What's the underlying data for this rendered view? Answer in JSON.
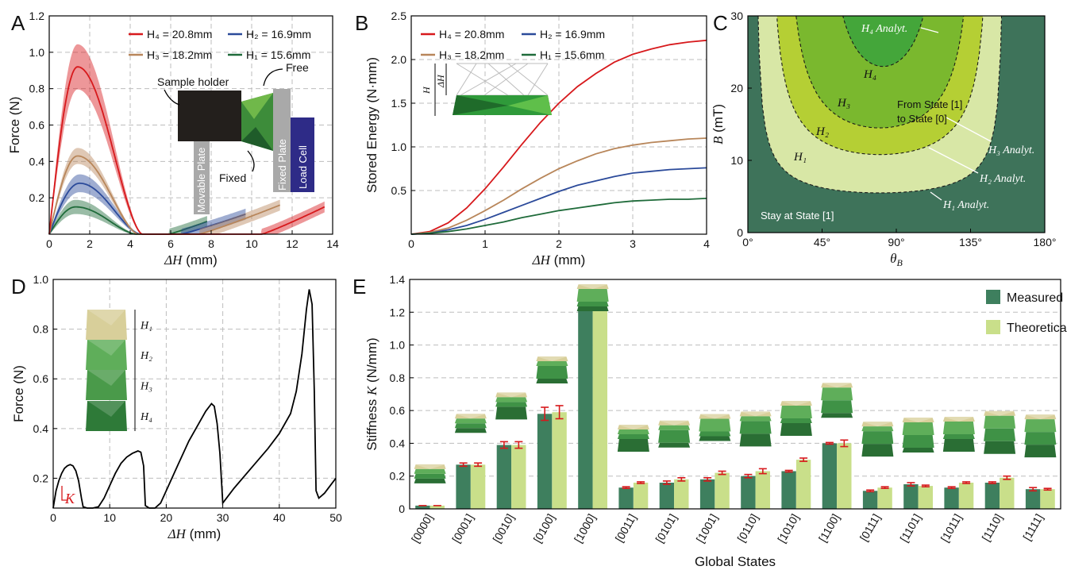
{
  "colors": {
    "H4": "#d7191c",
    "H3": "#b8865a",
    "H2": "#2b4a9a",
    "H1": "#1f6b3a",
    "measured": "#3e7f5e",
    "theoretical": "#c9df8a",
    "errorbar": "#d7191c",
    "regionH1": "#d8e7a6",
    "regionH2": "#b5cf34",
    "regionH3": "#7ab82e",
    "regionH4": "#44a63a",
    "regionStay": "#3e735a"
  },
  "panels": {
    "A": {
      "label": "A"
    },
    "B": {
      "label": "B"
    },
    "C": {
      "label": "C"
    },
    "D": {
      "label": "D"
    },
    "E": {
      "label": "E"
    }
  },
  "legendAB": {
    "H4": "H₄ = 20.8mm",
    "H2": "H₂ = 16.9mm",
    "H3": "H₃ = 18.2mm",
    "H1": "H₁ = 15.6mm"
  },
  "panelA_labels": {
    "sample_holder": "Sample holder",
    "free": "Free",
    "fixed": "Fixed",
    "movable_plate": "Movable Plate",
    "fixed_plate": "Fixed Plate",
    "load_cell": "Load Cell"
  },
  "panelB_labels": {
    "H": "H",
    "dH": "ΔH"
  },
  "panelC_labels": {
    "H4_analyt": "H₄ Analyt.",
    "H3_analyt": "H₃ Analyt.",
    "H2_analyt": "H₂ Analyt.",
    "H1_analyt": "H₁ Analyt.",
    "H4": "H₄",
    "H3": "H₃",
    "H2": "H₂",
    "H1": "H₁",
    "from_line1": "From State [1]",
    "from_line2": "to State [0]",
    "stay": "Stay at State  [1]"
  },
  "panelD_labels": {
    "K": "K",
    "H1": "H₁",
    "H2": "H₂",
    "H3": "H₃",
    "H4": "H₄"
  },
  "chart_data": [
    {
      "panel": "A",
      "type": "line",
      "xlabel": "ΔH (mm)",
      "ylabel": "Force (N)",
      "xlim": [
        0,
        14
      ],
      "ylim": [
        0,
        1.2
      ],
      "xticks": [
        0,
        2,
        4,
        6,
        8,
        10,
        12,
        14
      ],
      "yticks": [
        0.2,
        0.4,
        0.6,
        0.8,
        1.0,
        1.2
      ],
      "ytick_labels": [
        "0.2",
        "0.4",
        "0.6",
        "0.8",
        "1.0",
        "1.2"
      ],
      "grid": true,
      "legend": "top",
      "series": [
        {
          "key": "H4",
          "name": "H₄ = 20.8mm",
          "peak_x": 1.4,
          "peak_y": 0.92,
          "band": 0.12,
          "zero1": 4.6,
          "zero2": 10.5,
          "end_x": 13.6,
          "end_y": 0.15
        },
        {
          "key": "H3",
          "name": "H₃ = 18.2mm",
          "peak_x": 1.4,
          "peak_y": 0.43,
          "band": 0.04,
          "zero1": 4.4,
          "zero2": 7.4,
          "end_x": 11.4,
          "end_y": 0.16
        },
        {
          "key": "H2",
          "name": "H₂ = 16.9mm",
          "peak_x": 1.5,
          "peak_y": 0.28,
          "band": 0.045,
          "zero1": 4.5,
          "zero2": 6.5,
          "end_x": 9.7,
          "end_y": 0.11
        },
        {
          "key": "H1",
          "name": "H₁ = 15.6mm",
          "peak_x": 1.3,
          "peak_y": 0.15,
          "band": 0.035,
          "zero1": 4.3,
          "zero2": 5.9,
          "end_x": 7.8,
          "end_y": 0.07
        }
      ]
    },
    {
      "panel": "B",
      "type": "line",
      "xlabel": "ΔH (mm)",
      "ylabel": "Stored Energy (N·mm)",
      "xlim": [
        0,
        4
      ],
      "ylim": [
        0,
        2.5
      ],
      "xticks": [
        0,
        1,
        2,
        3,
        4
      ],
      "yticks": [
        0.5,
        1.0,
        1.5,
        2.0,
        2.5
      ],
      "ytick_labels": [
        "0.5",
        "1.0",
        "1.5",
        "2.0",
        "2.5"
      ],
      "grid": true,
      "legend": "top",
      "series": [
        {
          "key": "H4",
          "name": "H₄ = 20.8mm",
          "x": [
            0,
            0.25,
            0.5,
            0.75,
            1.0,
            1.25,
            1.5,
            1.75,
            2.0,
            2.25,
            2.5,
            2.75,
            3.0,
            3.25,
            3.5,
            3.75,
            4.0
          ],
          "values": [
            0,
            0.03,
            0.13,
            0.3,
            0.52,
            0.77,
            1.03,
            1.28,
            1.5,
            1.69,
            1.84,
            1.97,
            2.06,
            2.12,
            2.17,
            2.2,
            2.22
          ]
        },
        {
          "key": "H3",
          "name": "H₃ = 18.2mm",
          "x": [
            0,
            0.25,
            0.5,
            0.75,
            1.0,
            1.25,
            1.5,
            1.75,
            2.0,
            2.25,
            2.5,
            2.75,
            3.0,
            3.25,
            3.5,
            3.75,
            4.0
          ],
          "values": [
            0,
            0.02,
            0.07,
            0.16,
            0.27,
            0.39,
            0.52,
            0.64,
            0.75,
            0.84,
            0.92,
            0.98,
            1.02,
            1.05,
            1.07,
            1.09,
            1.1
          ]
        },
        {
          "key": "H2",
          "name": "H₂ = 16.9mm",
          "x": [
            0,
            0.25,
            0.5,
            0.75,
            1.0,
            1.25,
            1.5,
            1.75,
            2.0,
            2.25,
            2.5,
            2.75,
            3.0,
            3.25,
            3.5,
            3.75,
            4.0
          ],
          "values": [
            0,
            0.01,
            0.05,
            0.1,
            0.17,
            0.25,
            0.33,
            0.41,
            0.49,
            0.56,
            0.61,
            0.66,
            0.7,
            0.72,
            0.74,
            0.75,
            0.76
          ]
        },
        {
          "key": "H1",
          "name": "H₁ = 15.6mm",
          "x": [
            0,
            0.25,
            0.5,
            0.75,
            1.0,
            1.25,
            1.5,
            1.75,
            2.0,
            2.25,
            2.5,
            2.75,
            3.0,
            3.25,
            3.5,
            3.75,
            4.0
          ],
          "values": [
            0,
            0.01,
            0.03,
            0.06,
            0.1,
            0.14,
            0.19,
            0.23,
            0.27,
            0.3,
            0.33,
            0.36,
            0.38,
            0.39,
            0.4,
            0.4,
            0.41
          ]
        }
      ]
    },
    {
      "panel": "C",
      "type": "area",
      "xlabel": "θ_B",
      "ylabel": "B (mT)",
      "xlim": [
        0,
        180
      ],
      "ylim": [
        0,
        30
      ],
      "xticks": [
        0,
        45,
        90,
        135,
        180
      ],
      "xtick_labels": [
        "0°",
        "45°",
        "90°",
        "135°",
        "180°"
      ],
      "yticks": [
        0,
        10,
        20,
        30
      ],
      "ytick_labels": [
        "0",
        "10",
        "20",
        "30"
      ],
      "series": [
        {
          "key": "H1",
          "name": "H₁ Analyt.",
          "center": 80,
          "min_B": 5.5,
          "half_width": 75
        },
        {
          "key": "H2",
          "name": "H₂ Analyt.",
          "center": 80,
          "min_B": 10.8,
          "half_width": 67
        },
        {
          "key": "H3",
          "name": "H₃ Analyt.",
          "center": 80,
          "min_B": 14.5,
          "half_width": 58
        },
        {
          "key": "H4",
          "name": "H₄ Analyt.",
          "center": 82,
          "min_B": 23.0,
          "half_width": 38
        }
      ]
    },
    {
      "panel": "D",
      "type": "line",
      "xlabel": "ΔH (mm)",
      "ylabel": "Force (N)",
      "xlim": [
        0,
        50
      ],
      "ylim": [
        0.08,
        1.0
      ],
      "xticks": [
        0,
        10,
        20,
        30,
        40,
        50
      ],
      "yticks": [
        0.2,
        0.4,
        0.6,
        0.8,
        1.0
      ],
      "ytick_labels": [
        "0.2",
        "0.4",
        "0.6",
        "0.8",
        "1.0"
      ],
      "grid": true,
      "series": [
        {
          "name": "",
          "x": [
            0,
            0.5,
            1.0,
            1.5,
            2.0,
            2.5,
            3.0,
            3.5,
            4.0,
            4.5,
            5.0,
            5.3,
            6.0,
            7.0,
            8.0,
            9.0,
            10.0,
            11.0,
            12.0,
            13.0,
            14.0,
            15.0,
            15.5,
            16.0,
            16.3,
            17.0,
            18.0,
            19.0,
            20.0,
            22.0,
            24.0,
            26.0,
            27.0,
            28.0,
            28.5,
            29.0,
            29.5,
            30.0,
            32.0,
            35.0,
            38.0,
            40.0,
            42.0,
            43.0,
            44.0,
            44.8,
            45.3,
            45.8,
            46.2,
            46.5,
            47.0,
            48.0,
            50.0
          ],
          "values": [
            0.08,
            0.15,
            0.19,
            0.22,
            0.24,
            0.25,
            0.255,
            0.25,
            0.23,
            0.19,
            0.12,
            0.085,
            0.08,
            0.08,
            0.085,
            0.12,
            0.17,
            0.22,
            0.26,
            0.285,
            0.3,
            0.31,
            0.305,
            0.25,
            0.09,
            0.08,
            0.08,
            0.1,
            0.15,
            0.25,
            0.35,
            0.43,
            0.47,
            0.5,
            0.49,
            0.42,
            0.3,
            0.1,
            0.16,
            0.24,
            0.32,
            0.38,
            0.46,
            0.55,
            0.7,
            0.88,
            0.96,
            0.9,
            0.55,
            0.15,
            0.12,
            0.14,
            0.2
          ]
        }
      ]
    },
    {
      "panel": "E",
      "type": "bar",
      "xlabel": "Global States",
      "ylabel": "Stiffness K (N/mm)",
      "ylim": [
        0,
        1.4
      ],
      "yticks": [
        0,
        0.2,
        0.4,
        0.6,
        0.8,
        1.0,
        1.2,
        1.4
      ],
      "ytick_labels": [
        "0",
        "0.2",
        "0.4",
        "0.6",
        "0.8",
        "1.0",
        "1.2",
        "1.4"
      ],
      "legend": "top-right",
      "categories": [
        "[0000]",
        "[0001]",
        "[0010]",
        "[0100]",
        "[1000]",
        "[0011]",
        "[0101]",
        "[1001]",
        "[0110]",
        "[1010]",
        "[1100]",
        "[0111]",
        "[1101]",
        "[1011]",
        "[1110]",
        "[1111]"
      ],
      "series": [
        {
          "key": "measured",
          "name": "Measured",
          "values": [
            0.02,
            0.27,
            0.39,
            0.58,
            1.26,
            0.13,
            0.16,
            0.18,
            0.2,
            0.23,
            0.4,
            0.11,
            0.15,
            0.13,
            0.16,
            0.12
          ],
          "err": [
            0.0,
            0.01,
            0.02,
            0.04,
            0.04,
            0.005,
            0.01,
            0.01,
            0.01,
            0.005,
            0.005,
            0.005,
            0.01,
            0.005,
            0.005,
            0.01
          ]
        },
        {
          "key": "theoretical",
          "name": "Theoretical",
          "values": [
            0.02,
            0.27,
            0.39,
            0.59,
            1.26,
            0.16,
            0.18,
            0.22,
            0.23,
            0.3,
            0.4,
            0.13,
            0.14,
            0.16,
            0.19,
            0.12
          ],
          "err": [
            0.0,
            0.01,
            0.02,
            0.04,
            0.04,
            0.005,
            0.01,
            0.01,
            0.015,
            0.01,
            0.02,
            0.005,
            0.005,
            0.005,
            0.01,
            0.005
          ]
        }
      ]
    }
  ]
}
